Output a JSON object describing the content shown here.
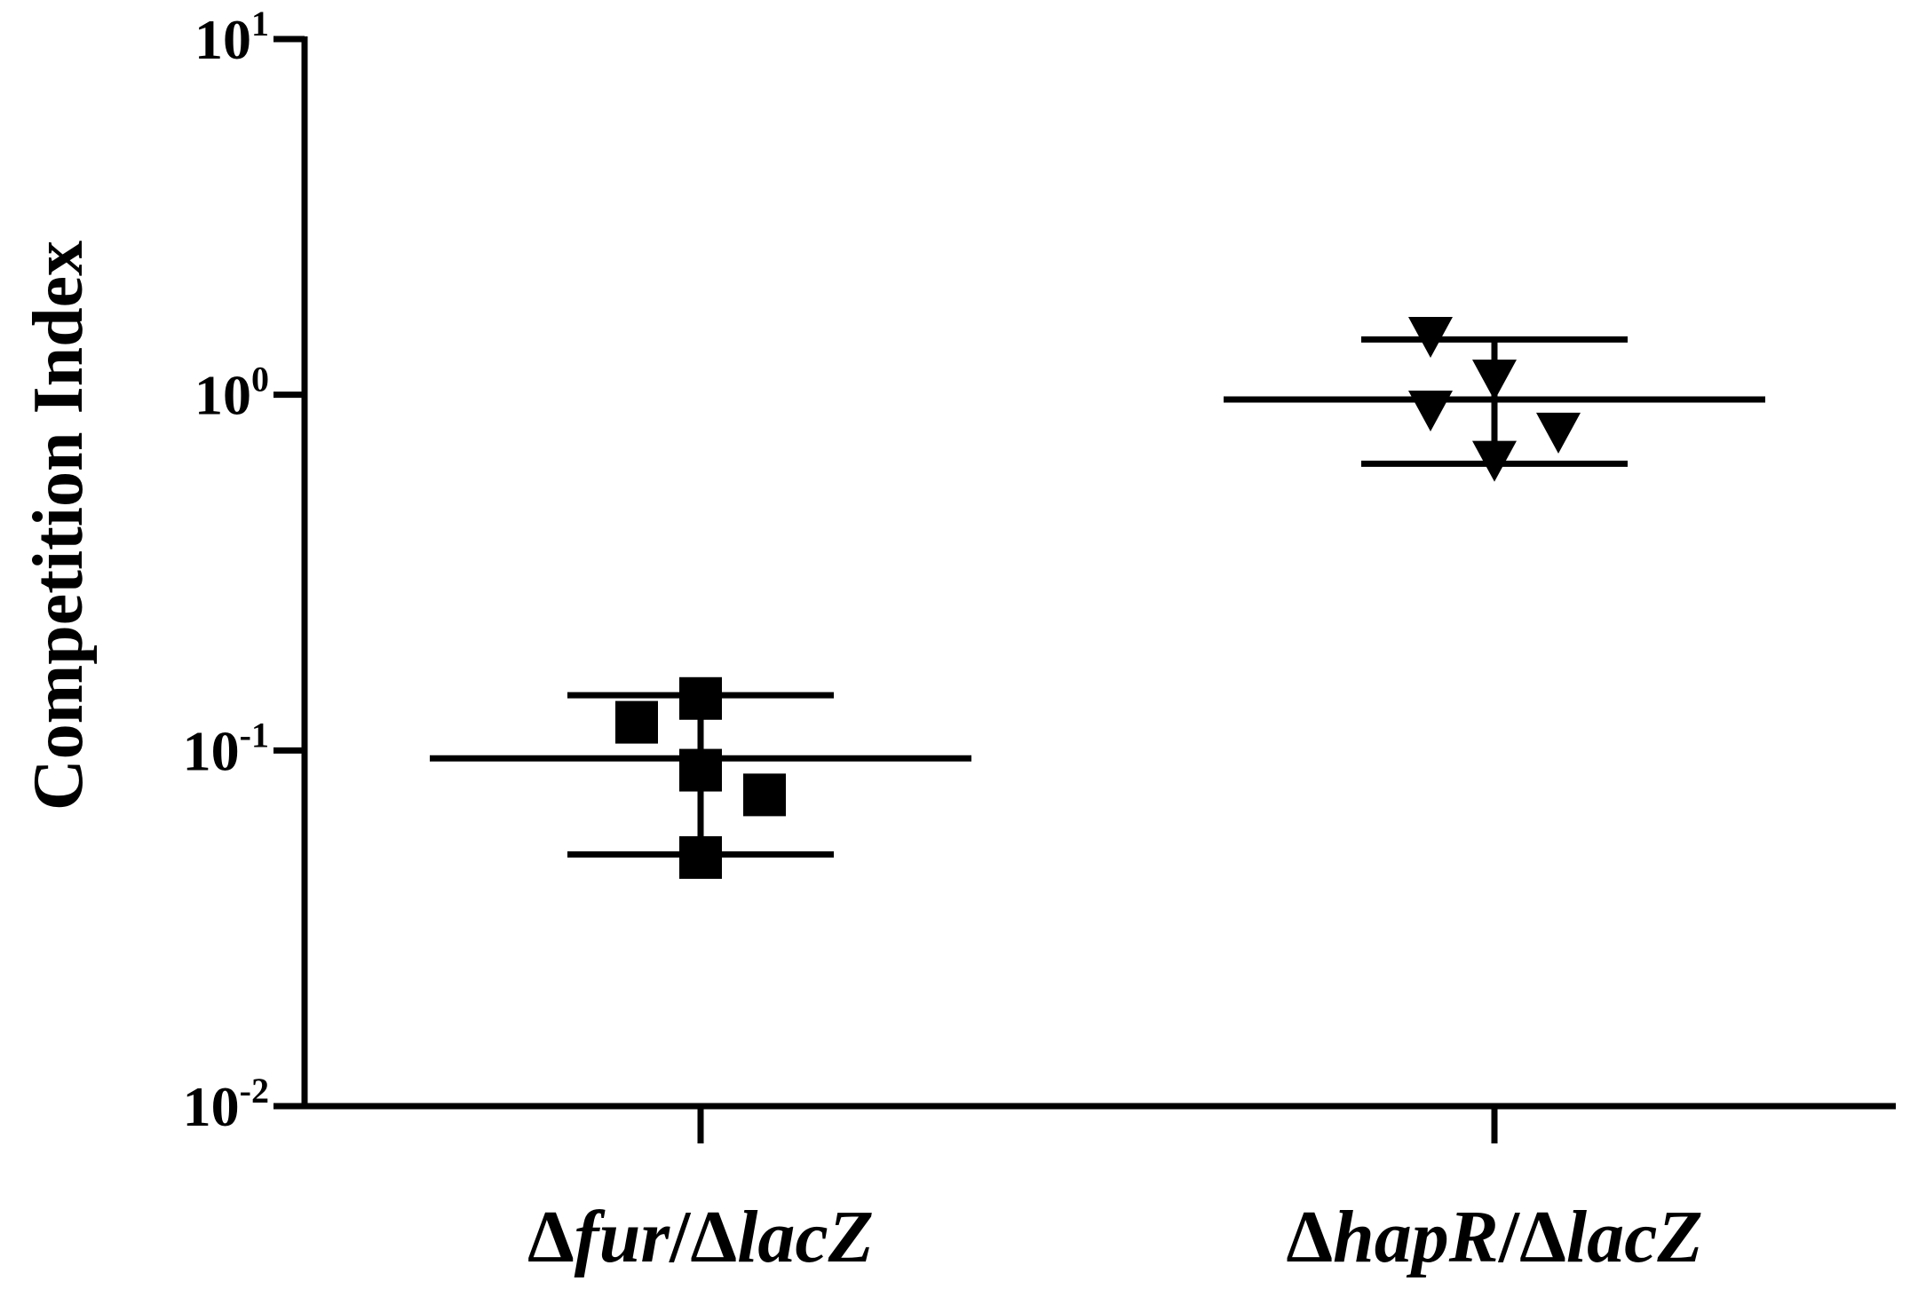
{
  "chart_data": {
    "type": "scatter",
    "ylabel": "Competition Index",
    "xlabel": "",
    "yscale": "log",
    "ylim": [
      0.01,
      10
    ],
    "y_ticks": [
      {
        "base": "10",
        "exp": "-2",
        "value": 0.01
      },
      {
        "base": "10",
        "exp": "-1",
        "value": 0.1
      },
      {
        "base": "10",
        "exp": "0",
        "value": 1
      },
      {
        "base": "10",
        "exp": "1",
        "value": 10
      }
    ],
    "grid": false,
    "categories": [
      {
        "prefix": "Δ",
        "gene": "fur",
        "sep": "/Δ",
        "ref": "lacZ"
      },
      {
        "prefix": "Δ",
        "gene": "hapR",
        "sep": "/Δ",
        "ref": "lacZ"
      }
    ],
    "series": [
      {
        "marker": "square",
        "points": [
          {
            "offset": -1,
            "y": 0.12
          },
          {
            "offset": 0,
            "y": 0.14
          },
          {
            "offset": 0,
            "y": 0.088
          },
          {
            "offset": 1,
            "y": 0.075
          },
          {
            "offset": 0,
            "y": 0.05
          }
        ],
        "mean": 0.095,
        "upper": 0.143,
        "lower": 0.051
      },
      {
        "marker": "triangle-down",
        "points": [
          {
            "offset": -1,
            "y": 1.45
          },
          {
            "offset": 0,
            "y": 1.1
          },
          {
            "offset": -1,
            "y": 0.9
          },
          {
            "offset": 1,
            "y": 0.78
          },
          {
            "offset": 0,
            "y": 0.65
          }
        ],
        "mean": 0.97,
        "upper": 1.43,
        "lower": 0.64
      }
    ]
  }
}
